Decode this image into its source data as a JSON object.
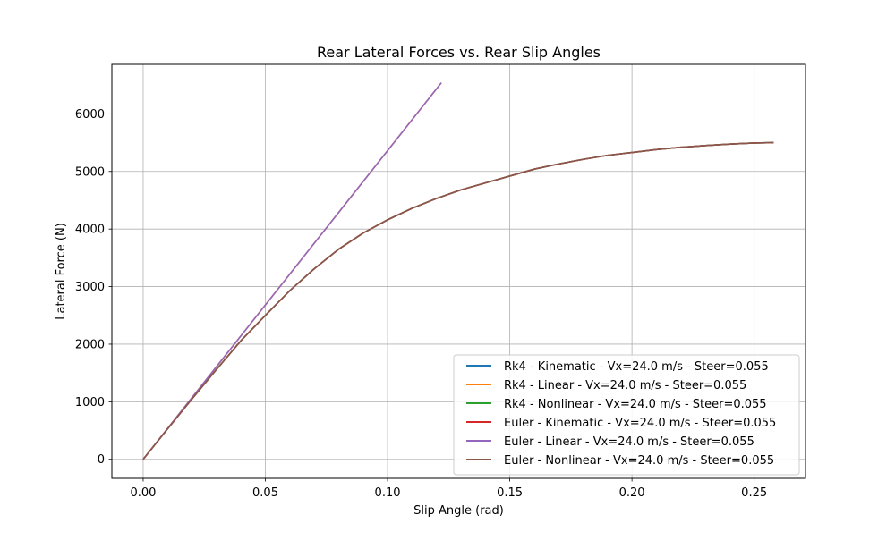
{
  "chart_data": {
    "type": "line",
    "title": "Rear Lateral Forces vs. Rear Slip Angles",
    "xlabel": "Slip Angle (rad)",
    "ylabel": "Lateral Force (N)",
    "xlim": [
      -0.0128,
      0.271
    ],
    "ylim": [
      -330,
      6860
    ],
    "xticks": [
      0.0,
      0.05,
      0.1,
      0.15,
      0.2,
      0.25
    ],
    "xtick_labels": [
      "0.00",
      "0.05",
      "0.10",
      "0.15",
      "0.20",
      "0.25"
    ],
    "yticks": [
      0,
      1000,
      2000,
      3000,
      4000,
      5000,
      6000
    ],
    "ytick_labels": [
      "0",
      "1000",
      "2000",
      "3000",
      "4000",
      "5000",
      "6000"
    ],
    "grid": true,
    "legend_position": "lower-right",
    "series": [
      {
        "name": "Rk4 - Kinematic - Vx=24.0 m/s - Steer=0.055",
        "color": "#1f77b4",
        "x": [
          0.0,
          0.01,
          0.02,
          0.03,
          0.04,
          0.05,
          0.06,
          0.07,
          0.08,
          0.09,
          0.1,
          0.11,
          0.12,
          0.13,
          0.14,
          0.15,
          0.16,
          0.17,
          0.18,
          0.19,
          0.2,
          0.21,
          0.22,
          0.23,
          0.24,
          0.25,
          0.258
        ],
        "y": [
          0,
          530,
          1050,
          1560,
          2060,
          2500,
          2930,
          3310,
          3650,
          3930,
          4160,
          4360,
          4530,
          4680,
          4800,
          4920,
          5040,
          5130,
          5210,
          5280,
          5330,
          5380,
          5420,
          5450,
          5475,
          5495,
          5500
        ]
      },
      {
        "name": "Rk4 - Linear - Vx=24.0 m/s - Steer=0.055",
        "color": "#ff7f0e",
        "x": [
          0.0,
          0.122
        ],
        "y": [
          0,
          6540
        ]
      },
      {
        "name": "Rk4 - Nonlinear - Vx=24.0 m/s - Steer=0.055",
        "color": "#2ca02c",
        "x": [
          0.0,
          0.01,
          0.02,
          0.03,
          0.04,
          0.05,
          0.06,
          0.07,
          0.08,
          0.09,
          0.1,
          0.11,
          0.12,
          0.13,
          0.14,
          0.15,
          0.16,
          0.17,
          0.18,
          0.19,
          0.2,
          0.21,
          0.22,
          0.23,
          0.24,
          0.25,
          0.258
        ],
        "y": [
          0,
          530,
          1050,
          1560,
          2060,
          2500,
          2930,
          3310,
          3650,
          3930,
          4160,
          4360,
          4530,
          4680,
          4800,
          4920,
          5040,
          5130,
          5210,
          5280,
          5330,
          5380,
          5420,
          5450,
          5475,
          5495,
          5500
        ]
      },
      {
        "name": "Euler - Kinematic - Vx=24.0 m/s - Steer=0.055",
        "color": "#d62728",
        "x": [
          0.0,
          0.01,
          0.02,
          0.03,
          0.04,
          0.05,
          0.06,
          0.07,
          0.08,
          0.09,
          0.1,
          0.11,
          0.12,
          0.13,
          0.14,
          0.15,
          0.16,
          0.17,
          0.18,
          0.19,
          0.2,
          0.21,
          0.22,
          0.23,
          0.24,
          0.25,
          0.258
        ],
        "y": [
          0,
          530,
          1050,
          1560,
          2060,
          2500,
          2930,
          3310,
          3650,
          3930,
          4160,
          4360,
          4530,
          4680,
          4800,
          4920,
          5040,
          5130,
          5210,
          5280,
          5330,
          5380,
          5420,
          5450,
          5475,
          5495,
          5500
        ]
      },
      {
        "name": "Euler - Linear - Vx=24.0 m/s - Steer=0.055",
        "color": "#9467bd",
        "x": [
          0.0,
          0.122
        ],
        "y": [
          0,
          6540
        ]
      },
      {
        "name": "Euler - Nonlinear - Vx=24.0 m/s - Steer=0.055",
        "color": "#8c564b",
        "x": [
          0.0,
          0.01,
          0.02,
          0.03,
          0.04,
          0.05,
          0.06,
          0.07,
          0.08,
          0.09,
          0.1,
          0.11,
          0.12,
          0.13,
          0.14,
          0.15,
          0.16,
          0.17,
          0.18,
          0.19,
          0.2,
          0.21,
          0.22,
          0.23,
          0.24,
          0.25,
          0.258
        ],
        "y": [
          0,
          530,
          1050,
          1560,
          2060,
          2500,
          2930,
          3310,
          3650,
          3930,
          4160,
          4360,
          4530,
          4680,
          4800,
          4920,
          5040,
          5130,
          5210,
          5280,
          5330,
          5380,
          5420,
          5450,
          5475,
          5495,
          5500
        ]
      }
    ]
  }
}
